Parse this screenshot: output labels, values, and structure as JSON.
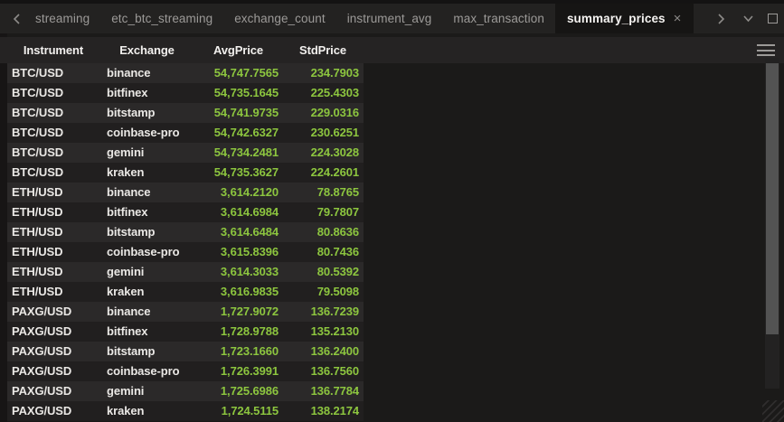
{
  "tab_bar": {
    "tabs": [
      {
        "label": "streaming",
        "active": false
      },
      {
        "label": "etc_btc_streaming",
        "active": false
      },
      {
        "label": "exchange_count",
        "active": false
      },
      {
        "label": "instrument_avg",
        "active": false
      },
      {
        "label": "max_transaction",
        "active": false
      },
      {
        "label": "summary_prices",
        "active": true
      }
    ],
    "close_glyph": "×"
  },
  "table": {
    "columns": [
      "Instrument",
      "Exchange",
      "AvgPrice",
      "StdPrice"
    ],
    "rows": [
      [
        "BTC/USD",
        "binance",
        "54,747.7565",
        "234.7903"
      ],
      [
        "BTC/USD",
        "bitfinex",
        "54,735.1645",
        "225.4303"
      ],
      [
        "BTC/USD",
        "bitstamp",
        "54,741.9735",
        "229.0316"
      ],
      [
        "BTC/USD",
        "coinbase-pro",
        "54,742.6327",
        "230.6251"
      ],
      [
        "BTC/USD",
        "gemini",
        "54,734.2481",
        "224.3028"
      ],
      [
        "BTC/USD",
        "kraken",
        "54,735.3627",
        "224.2601"
      ],
      [
        "ETH/USD",
        "binance",
        "3,614.2120",
        "78.8765"
      ],
      [
        "ETH/USD",
        "bitfinex",
        "3,614.6984",
        "79.7807"
      ],
      [
        "ETH/USD",
        "bitstamp",
        "3,614.6484",
        "80.8636"
      ],
      [
        "ETH/USD",
        "coinbase-pro",
        "3,615.8396",
        "80.7436"
      ],
      [
        "ETH/USD",
        "gemini",
        "3,614.3033",
        "80.5392"
      ],
      [
        "ETH/USD",
        "kraken",
        "3,616.9835",
        "79.5098"
      ],
      [
        "PAXG/USD",
        "binance",
        "1,727.9072",
        "136.7239"
      ],
      [
        "PAXG/USD",
        "bitfinex",
        "1,728.9788",
        "135.2130"
      ],
      [
        "PAXG/USD",
        "bitstamp",
        "1,723.1660",
        "136.2400"
      ],
      [
        "PAXG/USD",
        "coinbase-pro",
        "1,726.3991",
        "136.7560"
      ],
      [
        "PAXG/USD",
        "gemini",
        "1,725.6986",
        "136.7784"
      ],
      [
        "PAXG/USD",
        "kraken",
        "1,724.5115",
        "138.2174"
      ]
    ]
  },
  "colors": {
    "accent": "#8dc63f",
    "bg": "#1b1a19",
    "tabbar_bg": "#232221",
    "active_tab_bg": "#161514",
    "active_tab_fg": "#f5f3f1",
    "tab_fg": "#9c9a98",
    "header_bg": "#252323",
    "row_light": "#2b2929",
    "row_dark": "#211f1f",
    "cell_fg": "#eae8e5"
  }
}
